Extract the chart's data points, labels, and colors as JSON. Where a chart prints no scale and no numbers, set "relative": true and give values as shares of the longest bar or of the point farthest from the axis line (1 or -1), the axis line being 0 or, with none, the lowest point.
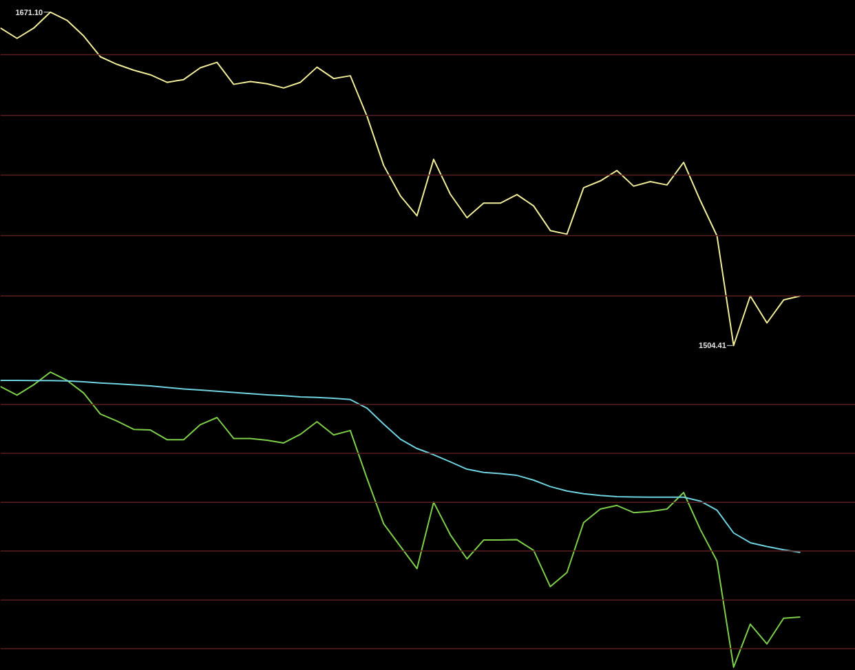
{
  "chart_data": [
    {
      "type": "line",
      "categories": [
        null,
        null,
        null,
        null,
        null,
        null,
        null,
        null,
        null,
        null,
        null,
        null,
        null,
        null,
        null,
        null,
        null,
        null,
        null,
        null,
        null,
        null,
        null,
        null,
        null,
        null,
        null,
        null,
        null,
        null,
        null,
        null,
        null,
        null,
        null,
        null,
        null,
        null,
        null,
        null,
        null,
        null,
        null,
        null,
        null,
        null,
        null,
        null,
        null
      ],
      "series": [
        {
          "color": "#f2ee9a",
          "values": [
            1663.2,
            1658.0,
            1663.1,
            1671.1,
            1667.0,
            1659.2,
            1648.8,
            1645.0,
            1642.1,
            1639.8,
            1636.0,
            1637.4,
            1643.3,
            1646.0,
            1635.0,
            1636.4,
            1635.3,
            1633.2,
            1636.0,
            1643.6,
            1637.9,
            1639.3,
            1619.1,
            1594.5,
            1579.3,
            1569.3,
            1597.5,
            1580.1,
            1568.3,
            1575.6,
            1575.6,
            1579.9,
            1574.2,
            1561.9,
            1560.1,
            1583.3,
            1586.7,
            1591.9,
            1584.1,
            1586.4,
            1584.7,
            1596.0,
            1576.9,
            1559.3,
            1504.41,
            1529.2,
            1515.7,
            1527.2,
            1529.2
          ],
          "value_labels": [
            null,
            null,
            null,
            "1671.10",
            null,
            null,
            null,
            null,
            null,
            null,
            null,
            null,
            null,
            null,
            null,
            null,
            null,
            null,
            null,
            null,
            null,
            null,
            null,
            null,
            null,
            null,
            null,
            null,
            null,
            null,
            null,
            null,
            null,
            null,
            null,
            null,
            null,
            null,
            null,
            null,
            null,
            null,
            null,
            null,
            "1504.41",
            null,
            null,
            null,
            null
          ]
        }
      ],
      "ref_lines": [
        {
          "axis": "y",
          "value": 1649.8,
          "color": "#5c1e1e"
        },
        {
          "axis": "y",
          "value": 1619.5,
          "color": "#5c1e1e"
        },
        {
          "axis": "y",
          "value": 1589.6,
          "color": "#5c1e1e"
        },
        {
          "axis": "y",
          "value": 1559.4,
          "color": "#5c1e1e"
        },
        {
          "axis": "y",
          "value": 1529.2,
          "color": "#5c1e1e"
        }
      ],
      "tick_labels": false
    },
    {
      "type": "line",
      "relative": true,
      "tick_labels": false,
      "ref_lines": [
        {
          "axis": "y",
          "value": 0.89,
          "color": "#5c1e1e"
        },
        {
          "axis": "y",
          "value": 0.725,
          "color": "#5c1e1e"
        },
        {
          "axis": "y",
          "value": 0.559,
          "color": "#5c1e1e"
        },
        {
          "axis": "y",
          "value": 0.394,
          "color": "#5c1e1e"
        },
        {
          "axis": "y",
          "value": 0.228,
          "color": "#5c1e1e"
        },
        {
          "axis": "y",
          "value": 0.063,
          "color": "#5c1e1e"
        }
      ],
      "categories": [
        null,
        null,
        null,
        null,
        null,
        null,
        null,
        null,
        null,
        null,
        null,
        null,
        null,
        null,
        null,
        null,
        null,
        null,
        null,
        null,
        null,
        null,
        null,
        null,
        null,
        null,
        null,
        null,
        null,
        null,
        null,
        null,
        null,
        null,
        null,
        null,
        null,
        null,
        null,
        null,
        null,
        null,
        null,
        null,
        null,
        null,
        null,
        null,
        null
      ],
      "series": [
        {
          "color": "#7ed04b",
          "values": [
            0.951,
            0.922,
            0.957,
            1,
            0.972,
            0.929,
            0.858,
            0.834,
            0.806,
            0.804,
            0.771,
            0.771,
            0.822,
            0.846,
            0.775,
            0.775,
            0.769,
            0.76,
            0.789,
            0.832,
            0.787,
            0.802,
            0.64,
            0.486,
            0.41,
            0.334,
            0.559,
            0.449,
            0.367,
            0.431,
            0.431,
            0.432,
            0.396,
            0.273,
            0.321,
            0.49,
            0.536,
            0.548,
            0.524,
            0.528,
            0.536,
            0.592,
            0.467,
            0.36,
            0,
            0.146,
            0.079,
            0.166,
            0.17
          ]
        },
        {
          "color": "#6fd3e0",
          "values": [
            0.972,
            0.972,
            0.971,
            0.971,
            0.97,
            0.967,
            0.963,
            0.96,
            0.957,
            0.953,
            0.948,
            0.943,
            0.939,
            0.935,
            0.931,
            0.927,
            0.923,
            0.92,
            0.916,
            0.914,
            0.911,
            0.907,
            0.878,
            0.824,
            0.773,
            0.741,
            0.72,
            0.696,
            0.671,
            0.66,
            0.656,
            0.65,
            0.634,
            0.612,
            0.597,
            0.588,
            0.582,
            0.578,
            0.577,
            0.576,
            0.576,
            0.576,
            0.563,
            0.532,
            0.455,
            0.422,
            0.409,
            0.398,
            0.389
          ]
        }
      ]
    }
  ]
}
